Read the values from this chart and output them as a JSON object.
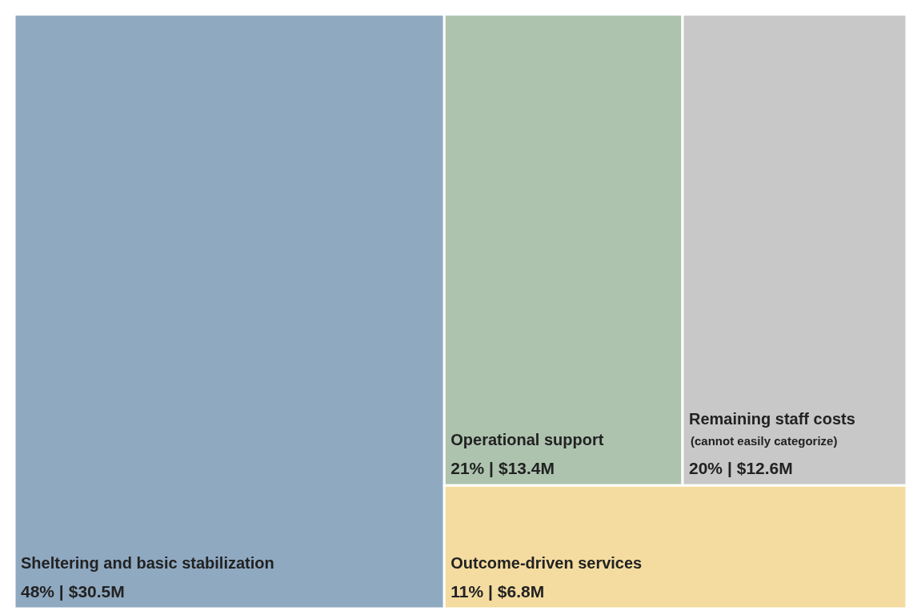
{
  "chart_data": {
    "type": "other",
    "categories": [
      "Sheltering and basic stabilization",
      "Operational support",
      "Remaining staff costs",
      "Outcome-driven services"
    ],
    "values": [
      30.5,
      13.4,
      12.6,
      6.8
    ],
    "value_labels": [
      "$30.5M",
      "$13.4M",
      "$12.6M",
      "$6.8M"
    ],
    "colors": [
      "#8fa9c1",
      "#adc3ae",
      "#c8c8c8",
      "#f4dca0"
    ],
    "annotations": [
      {
        "text": "48% |",
        "x": "Sheltering and basic stabilization"
      },
      {
        "text": "21% |",
        "x": "Operational support"
      },
      {
        "text": "20% |",
        "x": "Remaining staff costs"
      },
      {
        "text": "11% |",
        "x": "Outcome-driven services"
      },
      {
        "text": "(cannot easily categorize)",
        "x": "Remaining staff costs"
      }
    ]
  }
}
